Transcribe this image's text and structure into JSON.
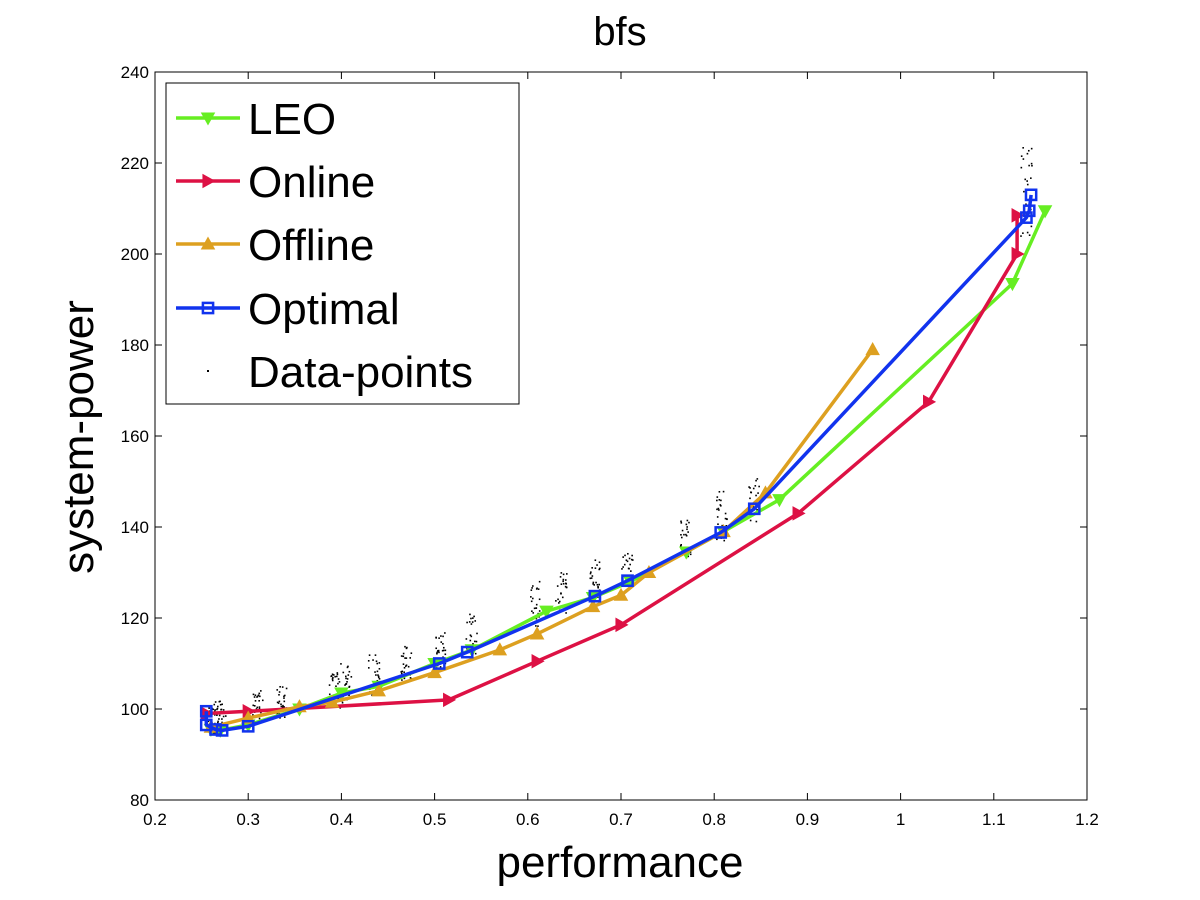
{
  "chart_data": {
    "type": "line",
    "title": "bfs",
    "xlabel": "performance",
    "ylabel": "system-power",
    "xlim": [
      0.2,
      1.2
    ],
    "ylim": [
      80,
      240
    ],
    "x_ticks": [
      0.2,
      0.3,
      0.4,
      0.5,
      0.6,
      0.7,
      0.8,
      0.9,
      1,
      1.1,
      1.2
    ],
    "x_tick_labels": [
      "0.2",
      "0.3",
      "0.4",
      "0.5",
      "0.6",
      "0.7",
      "0.8",
      "0.9",
      "1",
      "1.1",
      "1.2"
    ],
    "y_ticks": [
      80,
      100,
      120,
      140,
      160,
      180,
      200,
      220,
      240
    ],
    "y_tick_labels": [
      "80",
      "100",
      "120",
      "140",
      "160",
      "180",
      "200",
      "220",
      "240"
    ],
    "grid": false,
    "legend_position": "top-left",
    "series": [
      {
        "name": "LEO",
        "color": "#66ee22",
        "marker": "triangle-down",
        "points": [
          [
            0.26,
            95.5
          ],
          [
            0.27,
            95.3
          ],
          [
            0.3,
            96.5
          ],
          [
            0.355,
            100
          ],
          [
            0.4,
            103.5
          ],
          [
            0.44,
            105
          ],
          [
            0.5,
            110
          ],
          [
            0.54,
            113
          ],
          [
            0.62,
            121.5
          ],
          [
            0.67,
            124.5
          ],
          [
            0.71,
            128
          ],
          [
            0.77,
            134.5
          ],
          [
            0.81,
            139
          ],
          [
            0.87,
            146
          ],
          [
            1.12,
            193.5
          ],
          [
            1.155,
            209.5
          ]
        ]
      },
      {
        "name": "Online",
        "color": "#dd1144",
        "marker": "triangle-right",
        "points": [
          [
            0.255,
            99
          ],
          [
            0.3,
            99.5
          ],
          [
            0.515,
            102
          ],
          [
            0.61,
            110.5
          ],
          [
            0.7,
            118.5
          ],
          [
            0.89,
            143
          ],
          [
            1.03,
            167.5
          ],
          [
            1.125,
            200
          ],
          [
            1.125,
            208.5
          ]
        ]
      },
      {
        "name": "Offline",
        "color": "#dda020",
        "marker": "triangle-up",
        "points": [
          [
            0.26,
            96
          ],
          [
            0.3,
            98
          ],
          [
            0.355,
            100.5
          ],
          [
            0.39,
            101.5
          ],
          [
            0.44,
            104
          ],
          [
            0.5,
            108
          ],
          [
            0.57,
            113
          ],
          [
            0.61,
            116.5
          ],
          [
            0.67,
            122.5
          ],
          [
            0.7,
            125
          ],
          [
            0.73,
            130
          ],
          [
            0.81,
            139
          ],
          [
            0.855,
            147.5
          ],
          [
            0.97,
            179
          ]
        ]
      },
      {
        "name": "Optimal",
        "color": "#1133ee",
        "marker": "square",
        "points": [
          [
            0.255,
            99.5
          ],
          [
            0.255,
            96.5
          ],
          [
            0.265,
            95.5
          ],
          [
            0.272,
            95.3
          ],
          [
            0.3,
            96.2
          ],
          [
            0.505,
            110
          ],
          [
            0.535,
            112.5
          ],
          [
            0.672,
            124.8
          ],
          [
            0.707,
            128.2
          ],
          [
            0.807,
            138.8
          ],
          [
            0.843,
            144
          ],
          [
            1.135,
            208
          ],
          [
            1.138,
            209.5
          ],
          [
            1.14,
            213
          ]
        ]
      }
    ],
    "scatter": {
      "name": "Data-points",
      "color": "#000000",
      "clusters": [
        {
          "x": 0.262,
          "y": [
            94,
            101
          ]
        },
        {
          "x": 0.27,
          "y": [
            95,
            102
          ]
        },
        {
          "x": 0.31,
          "y": [
            97,
            104
          ]
        },
        {
          "x": 0.336,
          "y": [
            98,
            105
          ]
        },
        {
          "x": 0.393,
          "y": [
            100,
            108
          ]
        },
        {
          "x": 0.405,
          "y": [
            101,
            110
          ]
        },
        {
          "x": 0.435,
          "y": [
            103,
            112
          ]
        },
        {
          "x": 0.47,
          "y": [
            106,
            114
          ]
        },
        {
          "x": 0.506,
          "y": [
            109,
            117
          ]
        },
        {
          "x": 0.54,
          "y": [
            112,
            121
          ]
        },
        {
          "x": 0.608,
          "y": [
            118,
            128
          ]
        },
        {
          "x": 0.636,
          "y": [
            121,
            130
          ]
        },
        {
          "x": 0.672,
          "y": [
            124,
            133
          ]
        },
        {
          "x": 0.707,
          "y": [
            127,
            135
          ]
        },
        {
          "x": 0.77,
          "y": [
            133,
            142
          ]
        },
        {
          "x": 0.808,
          "y": [
            137,
            149
          ]
        },
        {
          "x": 0.843,
          "y": [
            141,
            151
          ]
        },
        {
          "x": 1.135,
          "y": [
            203,
            224
          ]
        }
      ]
    }
  }
}
